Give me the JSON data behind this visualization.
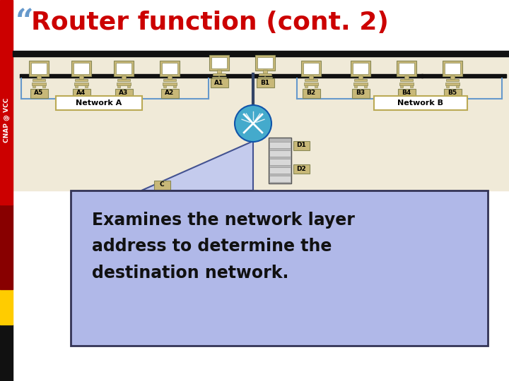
{
  "title_quote": "“",
  "title_text": "Router function (cont. 2)",
  "title_color": "#cc0000",
  "quote_color": "#6699cc",
  "body_text": "Examines the network layer\naddress to determine the\ndestination network.",
  "body_box_color": "#b0b8e8",
  "body_box_edge_color": "#333355",
  "bg_color": "#ffffff",
  "network_a_label": "Network A",
  "network_b_label": "Network B",
  "node_color": "#c8b878",
  "node_border": "#888855",
  "bus_color": "#111111",
  "bottom_arrow_fill": "#c0c8f0",
  "router_color": "#44aacc",
  "sidebar_red": "#cc0000",
  "sidebar_darkred": "#880000",
  "sidebar_black": "#111111",
  "sidebar_yellow": "#ffcc00",
  "text_dark": "#111111"
}
